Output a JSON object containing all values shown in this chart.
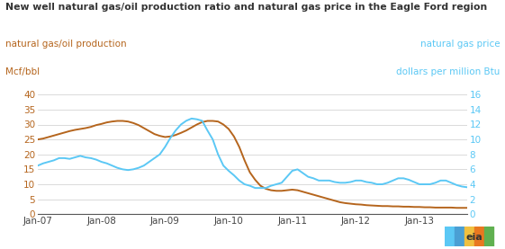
{
  "title": "New well natural gas/oil production ratio and natural gas price in the Eagle Ford region",
  "left_label_line1": "natural gas/oil production",
  "left_label_line2": "Mcf/bbl",
  "right_label_line1": "natural gas price",
  "right_label_line2": "dollars per million Btu",
  "left_color": "#b5651d",
  "right_color": "#5bc8f5",
  "title_color": "#333333",
  "background_color": "#ffffff",
  "grid_color": "#cccccc",
  "ylim_left": [
    0,
    40
  ],
  "ylim_right": [
    0,
    16
  ],
  "yticks_left": [
    0,
    5,
    10,
    15,
    20,
    25,
    30,
    35,
    40
  ],
  "yticks_right": [
    0,
    2,
    4,
    6,
    8,
    10,
    12,
    14,
    16
  ],
  "xtick_labels": [
    "Jan-07",
    "Jan-08",
    "Jan-09",
    "Jan-10",
    "Jan-11",
    "Jan-12",
    "Jan-13"
  ],
  "xlim": [
    0,
    81
  ],
  "gas_oil_ratio_x": [
    0,
    1,
    2,
    3,
    4,
    5,
    6,
    7,
    8,
    9,
    10,
    11,
    12,
    13,
    14,
    15,
    16,
    17,
    18,
    19,
    20,
    21,
    22,
    23,
    24,
    25,
    26,
    27,
    28,
    29,
    30,
    31,
    32,
    33,
    34,
    35,
    36,
    37,
    38,
    39,
    40,
    41,
    42,
    43,
    44,
    45,
    46,
    47,
    48,
    49,
    50,
    51,
    52,
    53,
    54,
    55,
    56,
    57,
    58,
    59,
    60,
    61,
    62,
    63,
    64,
    65,
    66,
    67,
    68,
    69,
    70,
    71,
    72,
    73,
    74,
    75,
    76,
    77,
    78,
    79,
    80,
    81
  ],
  "gas_oil_ratio_y": [
    25.0,
    25.3,
    25.8,
    26.3,
    26.8,
    27.3,
    27.8,
    28.2,
    28.5,
    28.8,
    29.2,
    29.8,
    30.2,
    30.7,
    31.0,
    31.2,
    31.2,
    31.0,
    30.5,
    29.8,
    28.8,
    27.8,
    26.8,
    26.2,
    25.8,
    26.0,
    26.5,
    27.2,
    28.0,
    29.0,
    30.0,
    30.8,
    31.2,
    31.2,
    31.0,
    30.0,
    28.5,
    26.0,
    22.5,
    18.0,
    14.0,
    11.5,
    9.5,
    8.5,
    8.0,
    7.8,
    7.8,
    8.0,
    8.2,
    8.0,
    7.5,
    7.0,
    6.5,
    6.0,
    5.5,
    5.0,
    4.5,
    4.0,
    3.7,
    3.5,
    3.3,
    3.2,
    3.0,
    2.9,
    2.8,
    2.7,
    2.7,
    2.6,
    2.6,
    2.5,
    2.5,
    2.4,
    2.4,
    2.3,
    2.3,
    2.2,
    2.2,
    2.2,
    2.2,
    2.1,
    2.1,
    2.1
  ],
  "gas_price_x": [
    0,
    1,
    2,
    3,
    4,
    5,
    6,
    7,
    8,
    9,
    10,
    11,
    12,
    13,
    14,
    15,
    16,
    17,
    18,
    19,
    20,
    21,
    22,
    23,
    24,
    25,
    26,
    27,
    28,
    29,
    30,
    31,
    32,
    33,
    34,
    35,
    36,
    37,
    38,
    39,
    40,
    41,
    42,
    43,
    44,
    45,
    46,
    47,
    48,
    49,
    50,
    51,
    52,
    53,
    54,
    55,
    56,
    57,
    58,
    59,
    60,
    61,
    62,
    63,
    64,
    65,
    66,
    67,
    68,
    69,
    70,
    71,
    72,
    73,
    74,
    75,
    76,
    77,
    78,
    79,
    80,
    81
  ],
  "gas_price_y": [
    6.5,
    6.8,
    7.0,
    7.2,
    7.5,
    7.5,
    7.4,
    7.6,
    7.8,
    7.6,
    7.5,
    7.3,
    7.0,
    6.8,
    6.5,
    6.2,
    6.0,
    5.9,
    6.0,
    6.2,
    6.5,
    7.0,
    7.5,
    8.0,
    9.0,
    10.2,
    11.2,
    12.0,
    12.5,
    12.8,
    12.7,
    12.5,
    11.2,
    10.0,
    8.0,
    6.5,
    5.8,
    5.2,
    4.5,
    4.0,
    3.8,
    3.5,
    3.5,
    3.5,
    3.8,
    4.0,
    4.2,
    5.0,
    5.8,
    6.0,
    5.5,
    5.0,
    4.8,
    4.5,
    4.5,
    4.5,
    4.3,
    4.2,
    4.2,
    4.3,
    4.5,
    4.5,
    4.3,
    4.2,
    4.0,
    4.0,
    4.2,
    4.5,
    4.8,
    4.8,
    4.6,
    4.3,
    4.0,
    4.0,
    4.0,
    4.2,
    4.5,
    4.5,
    4.2,
    3.9,
    3.7,
    3.6
  ]
}
